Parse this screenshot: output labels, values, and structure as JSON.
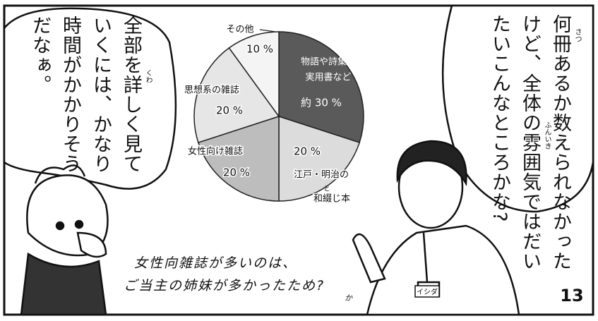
{
  "chart_data": {
    "type": "pie",
    "categories": [
      [
        "物語や詩集・",
        "実用書など"
      ],
      [
        "江戸・明治の",
        "和綴じ本"
      ],
      [
        "女性向け雑誌"
      ],
      [
        "思想系の雑誌"
      ],
      [
        "その他"
      ]
    ],
    "category_ruby": "と",
    "values": [
      30,
      20,
      20,
      20,
      10
    ],
    "value_labels": [
      "約 30 %",
      "20 %",
      "20 %",
      "20 %",
      "10 %"
    ],
    "colors": [
      "#5a5a5a",
      "#dcdcdc",
      "#bdbdbd",
      "#e6e6e6",
      "#f4f4f4"
    ]
  },
  "speech_right": {
    "lines": [
      "何冊あるか数えられなかった",
      "けど、全体の雰囲気ではだい",
      "たいこんなところかな?"
    ],
    "ruby": [
      "さつ",
      "ふんいき"
    ]
  },
  "speech_left": {
    "lines": [
      "全部を詳しく見て",
      "いくには、かなり",
      "時間がかかりそう",
      "だなぁ。"
    ],
    "ruby": [
      "くわ"
    ]
  },
  "caption": {
    "lines": [
      "女性向雑誌が多いのは、",
      "ご当主の姉妹が多かったため?"
    ],
    "note": "か"
  },
  "name_tag": "イシダ",
  "page_number": "13"
}
